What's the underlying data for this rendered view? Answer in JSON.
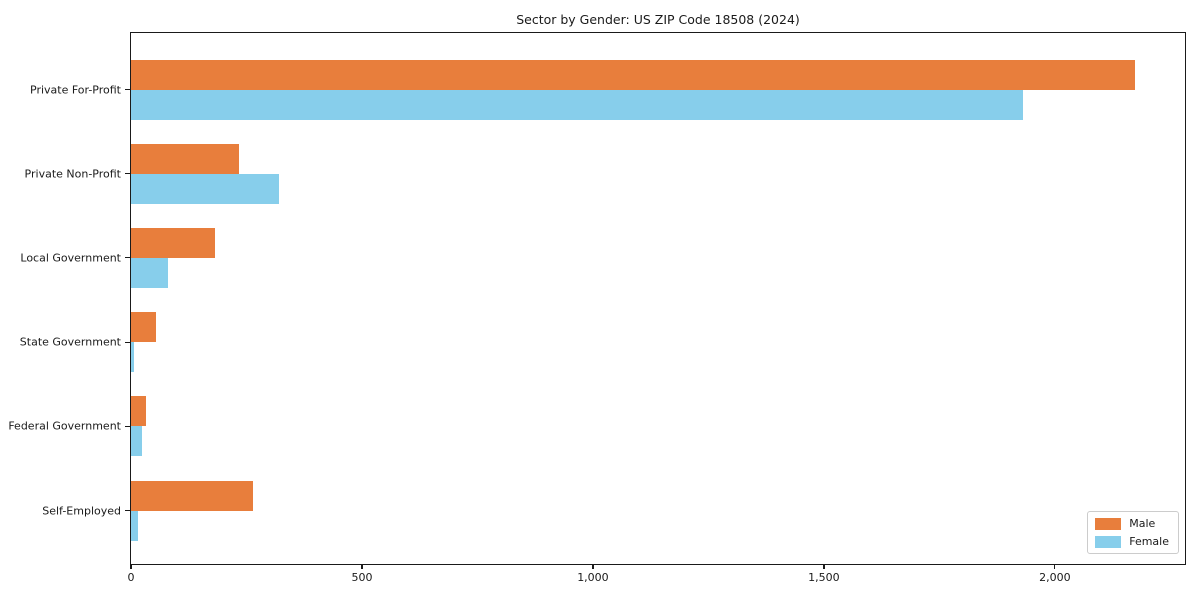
{
  "chart_data": {
    "type": "bar",
    "orientation": "horizontal",
    "title": "Sector by Gender: US ZIP Code 18508 (2024)",
    "categories": [
      "Private For-Profit",
      "Private Non-Profit",
      "Local Government",
      "State Government",
      "Federal Government",
      "Self-Employed"
    ],
    "series": [
      {
        "name": "Male",
        "color": "#e87e3c",
        "values": [
          2173,
          234,
          182,
          54,
          32,
          264
        ]
      },
      {
        "name": "Female",
        "color": "#87ceeb",
        "values": [
          1931,
          320,
          80,
          6,
          24,
          15
        ]
      }
    ],
    "xlabel": "",
    "ylabel": "",
    "xlim": [
      0,
      2286
    ],
    "xticks": [
      {
        "value": 0,
        "label": "0"
      },
      {
        "value": 500,
        "label": "500"
      },
      {
        "value": 1000,
        "label": "1,000"
      },
      {
        "value": 1500,
        "label": "1,500"
      },
      {
        "value": 2000,
        "label": "2,000"
      }
    ],
    "grid": false,
    "legend": {
      "position": "lower-right",
      "entries": [
        "Male",
        "Female"
      ]
    },
    "colors": {
      "background": "#ffffff",
      "spine": "#1a1a1a",
      "text": "#1a1a1a"
    }
  }
}
